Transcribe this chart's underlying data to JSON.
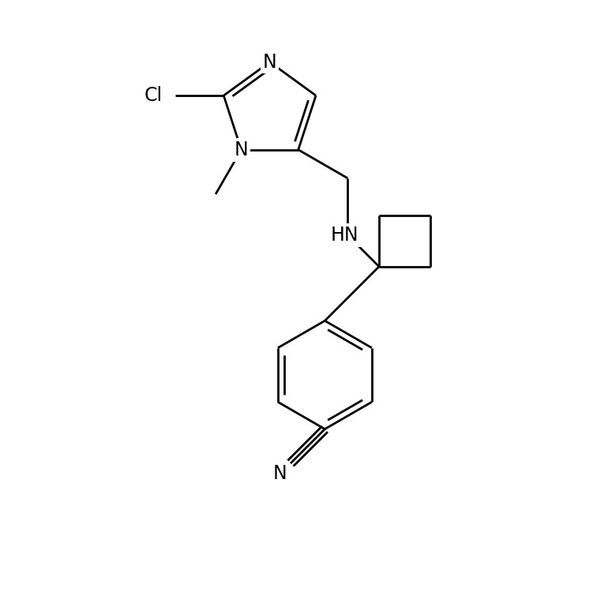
{
  "background_color": "#ffffff",
  "line_color": "#000000",
  "line_width": 2.0,
  "font_size": 17,
  "fig_width": 7.7,
  "fig_height": 7.64,
  "dpi": 100,
  "xlim": [
    -1.5,
    8.5
  ],
  "ylim": [
    -1.0,
    9.5
  ]
}
